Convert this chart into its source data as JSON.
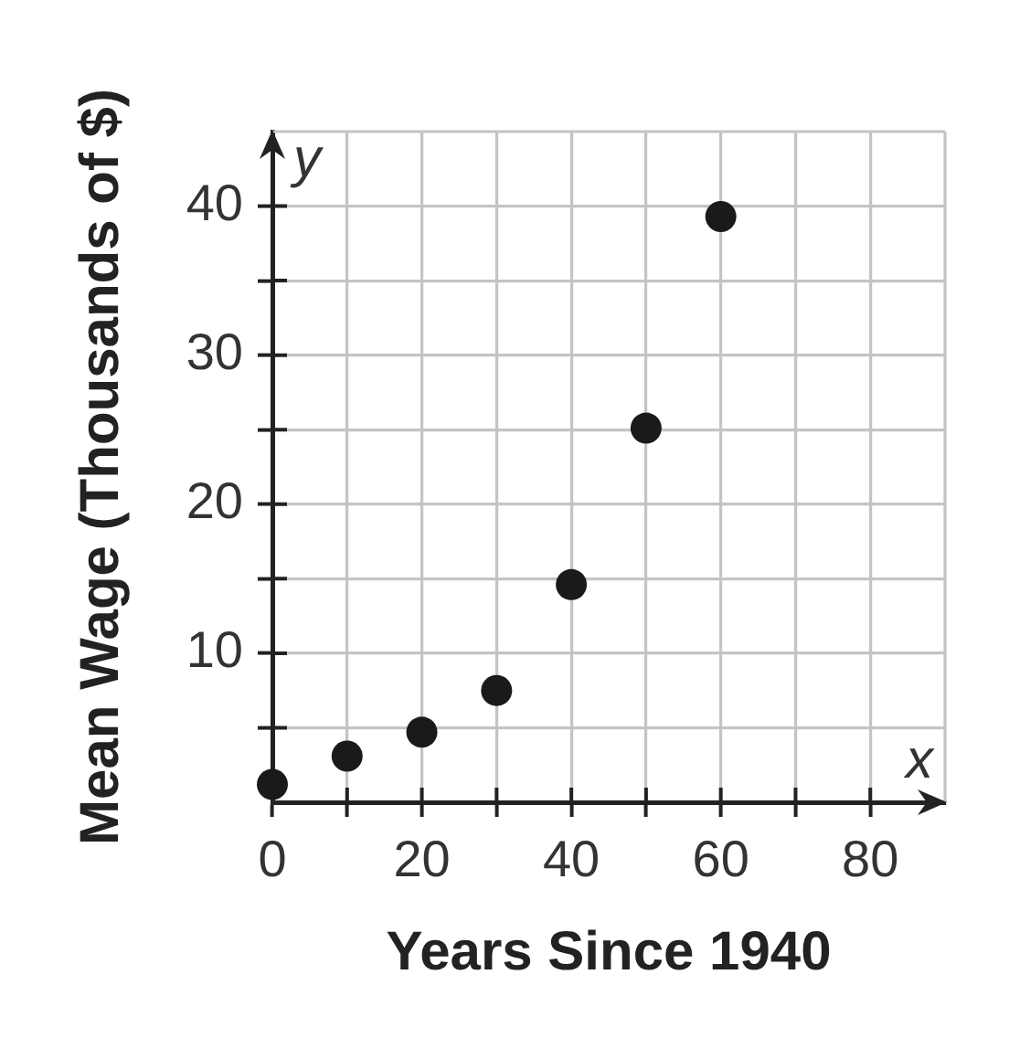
{
  "chart_data": {
    "type": "scatter",
    "xlabel": "Years Since 1940",
    "ylabel": "Mean Wage (Thousands of $)",
    "x": [
      0,
      10,
      20,
      30,
      40,
      50,
      60
    ],
    "series": [
      {
        "color": "#1a1a1a",
        "values": [
          1.2,
          3.1,
          4.7,
          7.5,
          14.6,
          25.1,
          39.3
        ]
      }
    ],
    "xlim": [
      0,
      90
    ],
    "ylim": [
      0,
      45
    ],
    "xticks": [
      0,
      {
        "value": 10,
        "label": null
      },
      20,
      {
        "value": 30,
        "label": null
      },
      40,
      {
        "value": 50,
        "label": null
      },
      60,
      {
        "value": 70,
        "label": null
      },
      80
    ],
    "yticks": [
      {
        "value": 5,
        "label": null
      },
      10,
      {
        "value": 15,
        "label": null
      },
      20,
      {
        "value": 25,
        "label": null
      },
      30,
      {
        "value": 35,
        "label": null
      },
      40
    ],
    "grid": true,
    "marker": "circle",
    "annotations": [
      "y",
      "x"
    ]
  }
}
